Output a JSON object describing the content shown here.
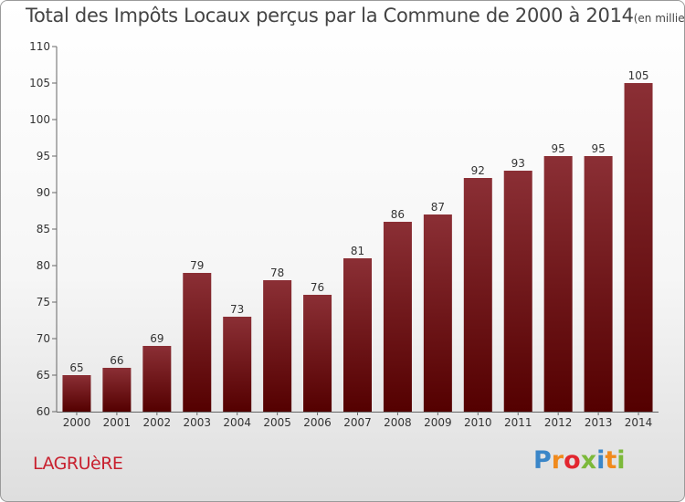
{
  "title": "Total des Impôts Locaux perçus par la Commune de 2000 à 2014",
  "unit": "(en milliers d'€)",
  "commune": "LAGRUèRE",
  "logo": {
    "text": "Proxiti",
    "colors": [
      "#3a86c8",
      "#f08a1c",
      "#e2262f",
      "#7cb93a",
      "#3a86c8",
      "#f08a1c",
      "#7cb93a"
    ]
  },
  "chart_data": {
    "type": "bar",
    "categories": [
      "2000",
      "2001",
      "2002",
      "2003",
      "2004",
      "2005",
      "2006",
      "2007",
      "2008",
      "2009",
      "2010",
      "2011",
      "2012",
      "2013",
      "2014"
    ],
    "values": [
      65,
      66,
      69,
      79,
      73,
      78,
      76,
      81,
      86,
      87,
      92,
      93,
      95,
      95,
      105
    ],
    "ylim": [
      60,
      110
    ],
    "yticks": [
      60,
      65,
      70,
      75,
      80,
      85,
      90,
      95,
      100,
      105,
      110
    ],
    "bar_color_top": "#8b2f35",
    "bar_color_bottom": "#540000",
    "grid": false
  }
}
